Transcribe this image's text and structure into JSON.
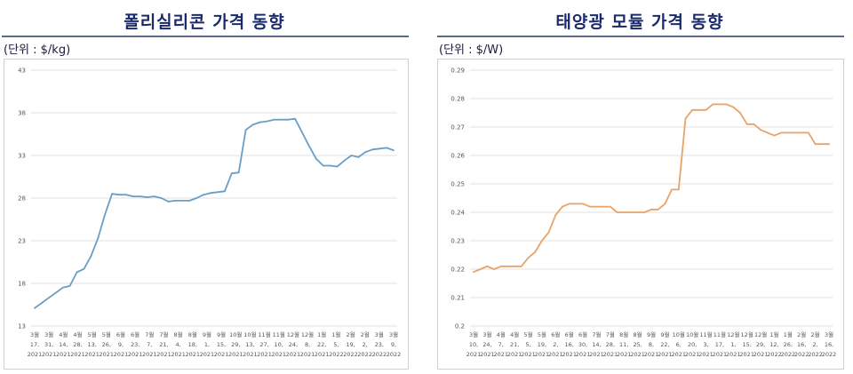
{
  "left": {
    "title": "폴리실리콘 가격 동향",
    "unit": "(단위 : $/kg)"
  },
  "right": {
    "title": "태양광 모듈 가격 동향",
    "unit": "(단위 : $/W)"
  },
  "chart_data": [
    {
      "type": "line",
      "title": "폴리실리콘 가격 동향",
      "ylim": [
        13,
        43
      ],
      "yticks": [
        13,
        18,
        23,
        28,
        33,
        38,
        43
      ],
      "grid": true,
      "x_label_lines": [
        [
          "3월",
          "3월",
          "4월",
          "4월",
          "5월",
          "5월",
          "6월",
          "6월",
          "7월",
          "7월",
          "8월",
          "8월",
          "9월",
          "9월",
          "10월",
          "10월",
          "11월",
          "11월",
          "12월",
          "12월",
          "1월",
          "1월",
          "2월",
          "2월",
          "3월",
          "3월"
        ],
        [
          "17,",
          "31,",
          "14,",
          "28,",
          "13,",
          "26,",
          "9,",
          "23,",
          "7,",
          "21,",
          "4,",
          "18,",
          "1,",
          "15,",
          "29,",
          "13,",
          "27,",
          "10,",
          "24,",
          "8,",
          "22,",
          "5,",
          "19,",
          "2,",
          "23,",
          "9,"
        ],
        [
          "2021",
          "2021",
          "2021",
          "2021",
          "2021",
          "2021",
          "2021",
          "2021",
          "2021",
          "2021",
          "2021",
          "2021",
          "2021",
          "2021",
          "2021",
          "2021",
          "2021",
          "2021",
          "2021",
          "2021",
          "2021",
          "2022",
          "2022",
          "2022",
          "2022",
          "2022"
        ]
      ],
      "series": [
        {
          "color": "#6a9ec5",
          "values": [
            15.1,
            15.7,
            16.3,
            16.9,
            17.5,
            17.7,
            19.3,
            19.7,
            21.2,
            23.3,
            26.1,
            28.5,
            28.4,
            28.4,
            28.2,
            28.2,
            28.1,
            28.2,
            28.0,
            27.6,
            27.7,
            27.7,
            27.7,
            28.0,
            28.4,
            28.6,
            28.7,
            28.8,
            30.9,
            31.0,
            36.0,
            36.6,
            36.9,
            37.0,
            37.2,
            37.2,
            37.2,
            37.3,
            35.7,
            34.1,
            32.6,
            31.8,
            31.8,
            31.7,
            32.4,
            33.0,
            32.8,
            33.4,
            33.7,
            33.8,
            33.9,
            33.6
          ]
        }
      ]
    },
    {
      "type": "line",
      "title": "태양광 모듈 가격 동향",
      "ylim": [
        0.2,
        0.29
      ],
      "yticks": [
        0.2,
        0.21,
        0.22,
        0.23,
        0.24,
        0.25,
        0.26,
        0.27,
        0.28,
        0.29
      ],
      "grid": true,
      "x_label_lines": [
        [
          "3월",
          "3월",
          "4월",
          "4월",
          "5월",
          "5월",
          "6월",
          "6월",
          "6월",
          "7월",
          "7월",
          "8월",
          "8월",
          "9월",
          "9월",
          "10월",
          "10월",
          "11월",
          "11월",
          "12월",
          "12월",
          "12월",
          "1월",
          "1월",
          "2월",
          "2월",
          "3월"
        ],
        [
          "10,",
          "24,",
          "7,",
          "21,",
          "5,",
          "19,",
          "2,",
          "16,",
          "30,",
          "14,",
          "28,",
          "11,",
          "25,",
          "8,",
          "22,",
          "6,",
          "20,",
          "3,",
          "17,",
          "1,",
          "15,",
          "29,",
          "12,",
          "26,",
          "16,",
          "2,",
          "16,"
        ],
        [
          "2021",
          "2021",
          "2021",
          "2021",
          "2021",
          "2021",
          "2021",
          "2021",
          "2021",
          "2021",
          "2021",
          "2021",
          "2021",
          "2021",
          "2021",
          "2021",
          "2021",
          "2021",
          "2021",
          "2021",
          "2021",
          "2021",
          "2022",
          "2022",
          "2022",
          "2022",
          "2022"
        ]
      ],
      "series": [
        {
          "color": "#e8a368",
          "values": [
            0.219,
            0.22,
            0.221,
            0.22,
            0.221,
            0.221,
            0.221,
            0.221,
            0.224,
            0.226,
            0.23,
            0.233,
            0.239,
            0.242,
            0.243,
            0.243,
            0.243,
            0.242,
            0.242,
            0.242,
            0.242,
            0.24,
            0.24,
            0.24,
            0.24,
            0.24,
            0.241,
            0.241,
            0.243,
            0.248,
            0.248,
            0.273,
            0.276,
            0.276,
            0.276,
            0.278,
            0.278,
            0.278,
            0.277,
            0.275,
            0.271,
            0.271,
            0.269,
            0.268,
            0.267,
            0.268,
            0.268,
            0.268,
            0.268,
            0.268,
            0.264,
            0.264,
            0.264
          ]
        }
      ]
    }
  ]
}
